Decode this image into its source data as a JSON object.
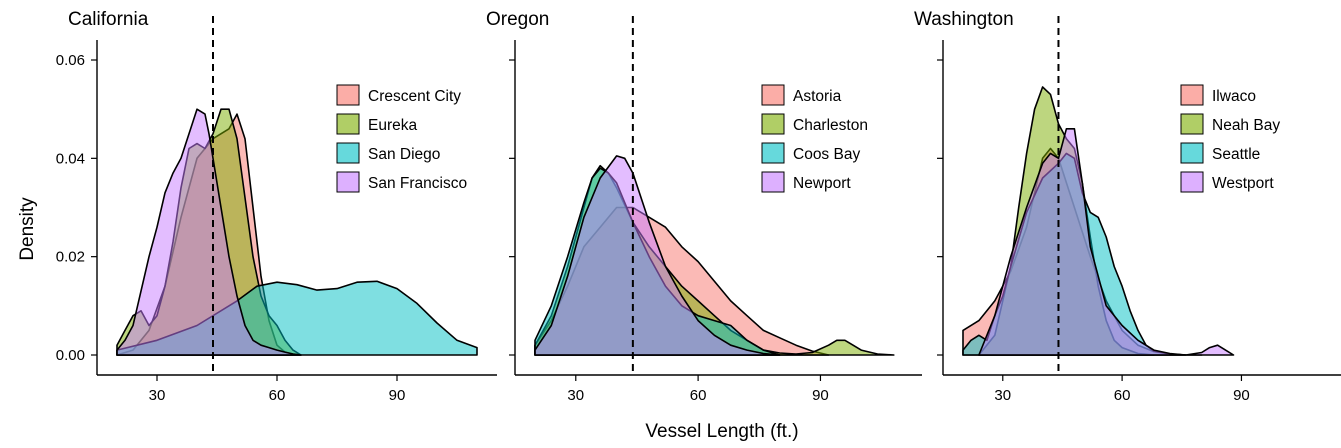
{
  "figure": {
    "ylabel": "Density",
    "xlabel": "Vessel Length (ft.)"
  },
  "chart_data": [
    {
      "type": "area",
      "title": "California",
      "xlim": [
        20,
        110
      ],
      "ylim": [
        0,
        0.06
      ],
      "xticks": [
        30,
        60,
        90
      ],
      "yticks": [
        0.0,
        0.02,
        0.04,
        0.06
      ],
      "ytick_labels": [
        "0.00",
        "0.02",
        "0.04",
        "0.06"
      ],
      "vline": 44,
      "legend_position": "top-right",
      "series": [
        {
          "name": "Crescent City",
          "color": "#F8766D",
          "x": [
            20,
            24,
            28,
            32,
            36,
            40,
            44,
            48,
            50,
            52,
            54,
            56,
            58,
            60,
            62,
            64,
            66
          ],
          "y": [
            0,
            0.001,
            0.005,
            0.014,
            0.028,
            0.04,
            0.044,
            0.046,
            0.049,
            0.044,
            0.03,
            0.016,
            0.007,
            0.002,
            0.0006,
            0.0002,
            0
          ]
        },
        {
          "name": "Eureka",
          "color": "#7CAE00",
          "x": [
            20,
            22,
            24,
            26,
            28,
            30,
            32,
            34,
            36,
            38,
            40,
            42,
            44,
            46,
            48,
            50,
            52,
            54,
            56,
            58,
            60,
            62,
            64,
            66
          ],
          "y": [
            0.002,
            0.005,
            0.008,
            0.009,
            0.006,
            0.008,
            0.014,
            0.023,
            0.034,
            0.042,
            0.043,
            0.042,
            0.045,
            0.05,
            0.05,
            0.044,
            0.032,
            0.02,
            0.012,
            0.008,
            0.006,
            0.003,
            0.001,
            0
          ]
        },
        {
          "name": "San Diego",
          "color": "#00BFC4",
          "x": [
            20,
            30,
            40,
            50,
            55,
            60,
            65,
            70,
            75,
            80,
            85,
            90,
            95,
            100,
            105,
            110
          ],
          "y": [
            0.001,
            0.003,
            0.006,
            0.011,
            0.014,
            0.0148,
            0.0143,
            0.0132,
            0.0135,
            0.0148,
            0.015,
            0.0135,
            0.0105,
            0.0065,
            0.003,
            0.0015
          ]
        },
        {
          "name": "San Francisco",
          "color": "#C77CFF",
          "x": [
            20,
            22,
            24,
            26,
            28,
            30,
            32,
            34,
            36,
            38,
            40,
            42,
            43,
            44,
            46,
            48,
            50,
            52,
            54,
            56,
            58,
            60,
            62,
            64,
            66
          ],
          "y": [
            0.001,
            0.003,
            0.006,
            0.013,
            0.02,
            0.026,
            0.033,
            0.037,
            0.04,
            0.045,
            0.05,
            0.049,
            0.045,
            0.04,
            0.03,
            0.02,
            0.012,
            0.006,
            0.003,
            0.002,
            0.0015,
            0.001,
            0.0006,
            0.0002,
            0
          ]
        }
      ]
    },
    {
      "type": "area",
      "title": "Oregon",
      "xlim": [
        20,
        110
      ],
      "ylim": [
        0,
        0.06
      ],
      "xticks": [
        30,
        60,
        90
      ],
      "yticks": [
        0.0,
        0.02,
        0.04,
        0.06
      ],
      "vline": 44,
      "legend_position": "top-right",
      "series": [
        {
          "name": "Astoria",
          "color": "#F8766D",
          "x": [
            20,
            24,
            28,
            32,
            36,
            40,
            44,
            48,
            52,
            56,
            60,
            64,
            68,
            72,
            76,
            80,
            84,
            88,
            92
          ],
          "y": [
            0.002,
            0.007,
            0.014,
            0.022,
            0.026,
            0.03,
            0.03,
            0.028,
            0.026,
            0.022,
            0.019,
            0.015,
            0.011,
            0.008,
            0.005,
            0.0035,
            0.002,
            0.0008,
            0
          ]
        },
        {
          "name": "Charleston",
          "color": "#7CAE00",
          "x": [
            20,
            24,
            28,
            32,
            34,
            36,
            38,
            40,
            44,
            48,
            52,
            56,
            60,
            64,
            68,
            72,
            76,
            80,
            84,
            88,
            92,
            94,
            96,
            98,
            100,
            104,
            108
          ],
          "y": [
            0.002,
            0.008,
            0.018,
            0.03,
            0.036,
            0.0385,
            0.037,
            0.034,
            0.027,
            0.022,
            0.018,
            0.014,
            0.011,
            0.008,
            0.005,
            0.003,
            0.001,
            0.0004,
            0.0002,
            0.0005,
            0.002,
            0.003,
            0.003,
            0.002,
            0.001,
            0.0002,
            0
          ]
        },
        {
          "name": "Coos Bay",
          "color": "#00BFC4",
          "x": [
            20,
            24,
            28,
            32,
            34,
            36,
            38,
            40,
            44,
            48,
            52,
            56,
            60,
            64,
            68,
            72,
            76,
            80
          ],
          "y": [
            0.003,
            0.01,
            0.02,
            0.031,
            0.036,
            0.038,
            0.037,
            0.035,
            0.027,
            0.02,
            0.014,
            0.01,
            0.008,
            0.007,
            0.006,
            0.003,
            0.001,
            0
          ]
        },
        {
          "name": "Newport",
          "color": "#C77CFF",
          "x": [
            20,
            24,
            28,
            32,
            36,
            40,
            42,
            44,
            48,
            52,
            56,
            60,
            64,
            68,
            72,
            76,
            80
          ],
          "y": [
            0.001,
            0.006,
            0.016,
            0.028,
            0.036,
            0.0405,
            0.04,
            0.037,
            0.027,
            0.018,
            0.012,
            0.007,
            0.004,
            0.002,
            0.001,
            0.0003,
            0
          ]
        }
      ]
    },
    {
      "type": "area",
      "title": "Washington",
      "xlim": [
        20,
        110
      ],
      "ylim": [
        0,
        0.06
      ],
      "xticks": [
        30,
        60,
        90
      ],
      "yticks": [
        0.0,
        0.02,
        0.04,
        0.06
      ],
      "vline": 44,
      "legend_position": "top-right",
      "series": [
        {
          "name": "Ilwaco",
          "color": "#F8766D",
          "x": [
            20,
            24,
            28,
            32,
            36,
            40,
            42,
            44,
            48,
            52,
            56,
            60,
            64,
            68,
            72,
            76
          ],
          "y": [
            0.005,
            0.007,
            0.011,
            0.017,
            0.026,
            0.04,
            0.042,
            0.04,
            0.03,
            0.02,
            0.011,
            0.005,
            0.002,
            0.0007,
            0.0002,
            0
          ]
        },
        {
          "name": "Neah Bay",
          "color": "#7CAE00",
          "x": [
            24,
            28,
            32,
            34,
            36,
            38,
            40,
            42,
            44,
            46,
            48,
            50,
            52,
            54,
            56,
            58,
            60,
            64,
            68
          ],
          "y": [
            0,
            0.004,
            0.018,
            0.03,
            0.041,
            0.05,
            0.0545,
            0.053,
            0.047,
            0.044,
            0.042,
            0.035,
            0.024,
            0.014,
            0.007,
            0.003,
            0.0015,
            0.0003,
            0
          ]
        },
        {
          "name": "Seattle",
          "color": "#00BFC4",
          "x": [
            20,
            22,
            24,
            26,
            28,
            30,
            32,
            36,
            40,
            44,
            46,
            48,
            50,
            52,
            54,
            56,
            58,
            60,
            62,
            64,
            66,
            68,
            72,
            76,
            80
          ],
          "y": [
            0.001,
            0.003,
            0.004,
            0.003,
            0.008,
            0.012,
            0.018,
            0.029,
            0.036,
            0.039,
            0.041,
            0.04,
            0.033,
            0.029,
            0.028,
            0.024,
            0.018,
            0.014,
            0.009,
            0.005,
            0.002,
            0.0008,
            0.0002,
            0,
            0
          ]
        },
        {
          "name": "Westport",
          "color": "#C77CFF",
          "x": [
            24,
            28,
            32,
            36,
            40,
            42,
            44,
            46,
            48,
            50,
            52,
            56,
            60,
            64,
            68,
            72,
            76,
            80,
            82,
            84,
            86,
            88
          ],
          "y": [
            0,
            0.008,
            0.02,
            0.03,
            0.039,
            0.041,
            0.04,
            0.046,
            0.046,
            0.035,
            0.022,
            0.01,
            0.006,
            0.003,
            0.001,
            0.0003,
            0,
            0.0005,
            0.0015,
            0.002,
            0.001,
            0
          ]
        }
      ]
    }
  ]
}
